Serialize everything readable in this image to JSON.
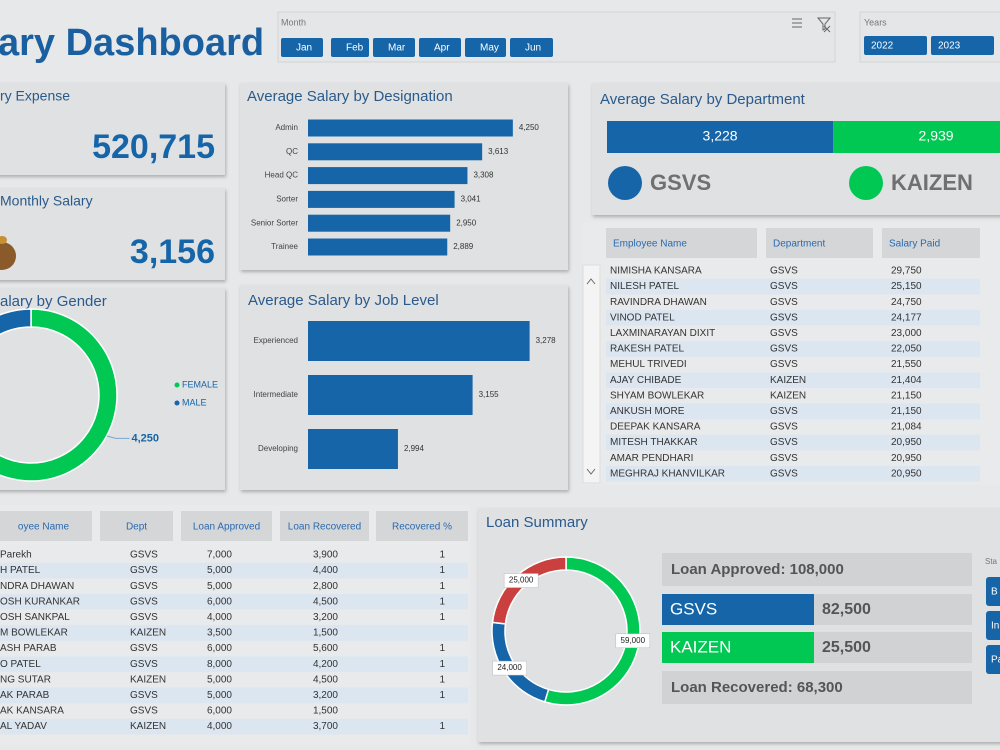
{
  "header": {
    "title": "ary Dashboard"
  },
  "slicers": {
    "month": {
      "label": "Month",
      "items": [
        "Jan",
        "Feb",
        "Mar",
        "Apr",
        "May",
        "Jun"
      ]
    },
    "years": {
      "label": "Years",
      "items": [
        "2022",
        "2023"
      ]
    },
    "status": {
      "label": "Sta",
      "items": [
        "B",
        "In",
        "Pa"
      ]
    }
  },
  "kpis": [
    {
      "title": "ry Expense",
      "value": "520,715"
    },
    {
      "title": "Monthly Salary",
      "value": "3,156"
    }
  ],
  "chart_data": [
    {
      "type": "bar",
      "horizontal": true,
      "title": "Average Salary by Designation",
      "categories": [
        "Admin",
        "QC",
        "Head QC",
        "Sorter",
        "Senior Sorter",
        "Trainee"
      ],
      "values": [
        4250,
        3613,
        3308,
        3041,
        2950,
        2889
      ],
      "value_labels": [
        "4,250",
        "3,613",
        "3,308",
        "3,041",
        "2,950",
        "2,889"
      ],
      "color": "#1565a8",
      "xlim": [
        0,
        5000
      ]
    },
    {
      "type": "bar",
      "horizontal": true,
      "title": "Average Salary by Job Level",
      "categories": [
        "Experienced",
        "Intermediate",
        "Developing"
      ],
      "values": [
        3278,
        3155,
        2994
      ],
      "value_labels": [
        "3,278",
        "3,155",
        "2,994"
      ],
      "color": "#1565a8",
      "xlim": [
        2800,
        3350
      ]
    },
    {
      "type": "bar",
      "horizontal": true,
      "stacked": true,
      "title": "Average Salary by Department",
      "series": [
        {
          "name": "GSVS",
          "color": "#1565a8",
          "values": [
            3228
          ],
          "value_labels": [
            "3,228"
          ]
        },
        {
          "name": "KAIZEN",
          "color": "#00c853",
          "values": [
            2939
          ],
          "value_labels": [
            "2,939"
          ]
        }
      ]
    },
    {
      "type": "pie",
      "donut": true,
      "title": "alary by Gender",
      "categories": [
        "FEMALE",
        "MALE"
      ],
      "values": [
        4250,
        3100
      ],
      "value_labels": [
        "4,250",
        null
      ],
      "colors": [
        "#00c853",
        "#1565a8"
      ],
      "legend": true
    },
    {
      "type": "pie",
      "donut": true,
      "title": "Loan Summary",
      "values": [
        59000,
        24000,
        25000
      ],
      "value_labels": [
        "59,000",
        "24,000",
        "25,000"
      ],
      "colors": [
        "#00c853",
        "#1565a8",
        "#c9403f"
      ],
      "legend": false
    }
  ],
  "salary_table": {
    "columns": [
      "Employee Name",
      "Department",
      "Salary Paid"
    ],
    "rows": [
      [
        "NIMISHA KANSARA",
        "GSVS",
        "29,750"
      ],
      [
        "NILESH PATEL",
        "GSVS",
        "25,150"
      ],
      [
        "RAVINDRA DHAWAN",
        "GSVS",
        "24,750"
      ],
      [
        "VINOD PATEL",
        "GSVS",
        "24,177"
      ],
      [
        "LAXMINARAYAN DIXIT",
        "GSVS",
        "23,000"
      ],
      [
        "RAKESH PATEL",
        "GSVS",
        "22,050"
      ],
      [
        "MEHUL TRIVEDI",
        "GSVS",
        "21,550"
      ],
      [
        "AJAY CHIBADE",
        "KAIZEN",
        "21,404"
      ],
      [
        "SHYAM BOWLEKAR",
        "KAIZEN",
        "21,150"
      ],
      [
        "ANKUSH MORE",
        "GSVS",
        "21,150"
      ],
      [
        "DEEPAK KANSARA",
        "GSVS",
        "21,084"
      ],
      [
        "MITESH THAKKAR",
        "GSVS",
        "20,950"
      ],
      [
        "AMAR PENDHARI",
        "GSVS",
        "20,950"
      ],
      [
        "MEGHRAJ KHANVILKAR",
        "GSVS",
        "20,950"
      ]
    ]
  },
  "loan_table": {
    "columns": [
      "oyee Name",
      "Dept",
      "Loan Approved",
      "Loan Recovered",
      "Recovered %"
    ],
    "rows": [
      [
        "Parekh",
        "GSVS",
        "7,000",
        "3,900",
        "1"
      ],
      [
        "H PATEL",
        "GSVS",
        "5,000",
        "4,400",
        "1"
      ],
      [
        "NDRA DHAWAN",
        "GSVS",
        "5,000",
        "2,800",
        "1"
      ],
      [
        "OSH KURANKAR",
        "GSVS",
        "6,000",
        "4,500",
        "1"
      ],
      [
        "OSH SANKPAL",
        "GSVS",
        "4,000",
        "3,200",
        "1"
      ],
      [
        "M BOWLEKAR",
        "KAIZEN",
        "3,500",
        "1,500",
        null
      ],
      [
        "ASH PARAB",
        "GSVS",
        "6,000",
        "5,600",
        "1"
      ],
      [
        "O PATEL",
        "GSVS",
        "8,000",
        "4,200",
        "1"
      ],
      [
        "NG SUTAR",
        "KAIZEN",
        "5,000",
        "4,500",
        "1"
      ],
      [
        "AK PARAB",
        "GSVS",
        "5,000",
        "3,200",
        "1"
      ],
      [
        "AK KANSARA",
        "GSVS",
        "6,000",
        "1,500",
        null
      ],
      [
        "AL YADAV",
        "KAIZEN",
        "4,000",
        "3,700",
        "1"
      ]
    ]
  },
  "loan_summary": {
    "approved": "Loan Approved: 108,000",
    "departments": [
      {
        "name": "GSVS",
        "value": "82,500",
        "color": "#1565a8"
      },
      {
        "name": "KAIZEN",
        "value": "25,500",
        "color": "#00c853"
      }
    ],
    "recovered": "Loan Recovered: 68,300"
  }
}
